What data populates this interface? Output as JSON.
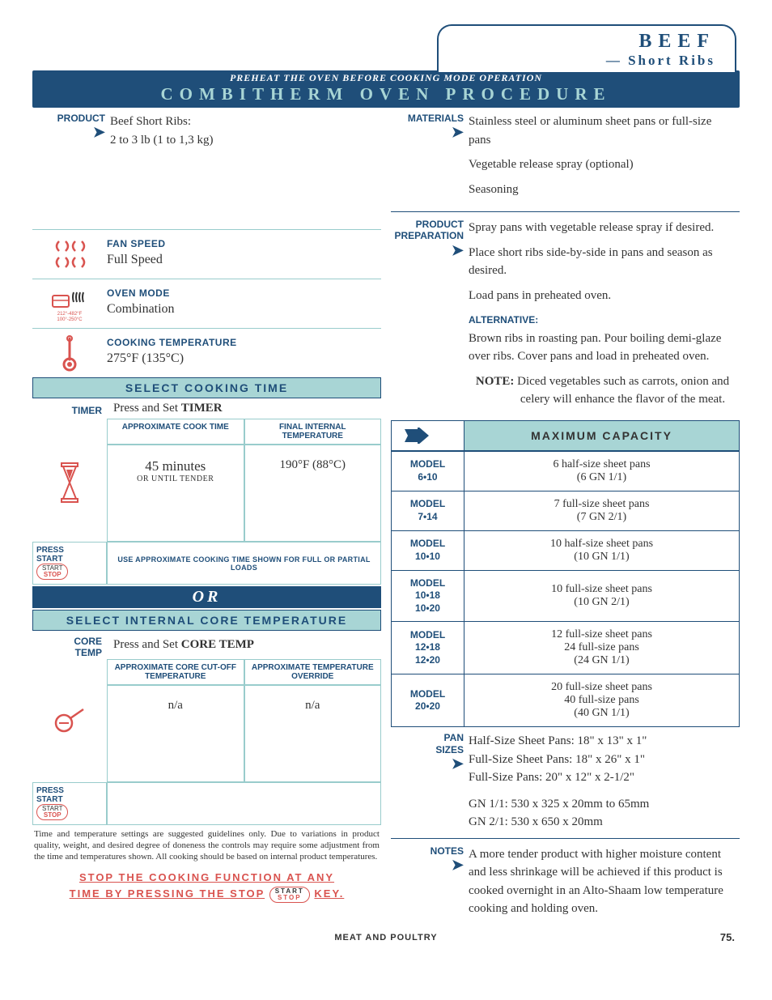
{
  "title": {
    "line1": "BEEF",
    "line2": "— Short Ribs"
  },
  "header": {
    "preheat": "PREHEAT THE OVEN BEFORE COOKING MODE OPERATION",
    "main": "COMBITHERM OVEN PROCEDURE"
  },
  "left": {
    "product": {
      "label": "PRODUCT",
      "line1": "Beef Short Ribs:",
      "line2": "2 to 3 lb (1 to 1,3 kg)"
    },
    "fan": {
      "label": "FAN SPEED",
      "value": "Full Speed"
    },
    "mode": {
      "label": "OVEN MODE",
      "value": "Combination"
    },
    "temp": {
      "label": "COOKING TEMPERATURE",
      "value": "275°F (135°C)"
    },
    "select_time": "SELECT COOKING TIME",
    "timer": {
      "label": "TIMER",
      "press": "Press and Set ",
      "bold": "TIMER",
      "h1": "APPROXIMATE COOK TIME",
      "h2": "FINAL INTERNAL TEMPERATURE",
      "v1": "45 minutes",
      "v1sub": "OR UNTIL TENDER",
      "v2": "190°F (88°C)"
    },
    "press_start": {
      "l1": "PRESS",
      "l2": "START"
    },
    "approx_hint": "USE APPROXIMATE COOKING TIME SHOWN FOR FULL OR PARTIAL LOADS",
    "or": "OR",
    "select_core": "SELECT INTERNAL CORE TEMPERATURE",
    "core": {
      "label": "CORE TEMP",
      "press": "Press and Set ",
      "bold": "CORE TEMP",
      "h1": "APPROXIMATE CORE CUT-OFF TEMPERATURE",
      "h2": "APPROXIMATE TEMPERATURE OVERRIDE",
      "v1": "n/a",
      "v2": "n/a"
    },
    "disclaimer": "Time and temperature settings are suggested guidelines only. Due to variations in product quality, weight, and desired degree of doneness the controls may require some adjustment from the time and temperatures shown. All cooking should be based on internal product temperatures.",
    "stop1": "STOP THE COOKING FUNCTION AT ANY",
    "stop2a": "TIME BY PRESSING THE STOP",
    "stop2b": "KEY."
  },
  "right": {
    "materials": {
      "label": "MATERIALS",
      "l1": "Stainless steel or aluminum sheet pans or full-size pans",
      "l2": "Vegetable release spray (optional)",
      "l3": "Seasoning"
    },
    "prep": {
      "label1": "PRODUCT",
      "label2": "PREPARATION",
      "p1": "Spray pans with vegetable release spray if desired.",
      "p2": "Place short ribs side-by-side in pans and season as desired.",
      "p3": "Load pans in preheated oven.",
      "alt_label": "ALTERNATIVE:",
      "alt": "Brown ribs in roasting pan. Pour boiling demi-glaze over ribs. Cover pans and load in preheated oven.",
      "note_label": "NOTE:",
      "note": "Diced vegetables such as carrots, onion and celery will enhance the flavor of the meat."
    },
    "capacity": {
      "header": "MAXIMUM CAPACITY",
      "rows": [
        {
          "model": "MODEL\n6•10",
          "desc": "6 half-size sheet pans\n(6 GN 1/1)"
        },
        {
          "model": "MODEL\n7•14",
          "desc": "7 full-size sheet pans\n(7 GN 2/1)"
        },
        {
          "model": "MODEL\n10•10",
          "desc": "10 half-size sheet pans\n(10 GN 1/1)"
        },
        {
          "model": "MODEL\n10•18\n10•20",
          "desc": "10 full-size sheet pans\n(10 GN 2/1)"
        },
        {
          "model": "MODEL\n12•18\n12•20",
          "desc": "12 full-size sheet pans\n24 full-size pans\n(24 GN 1/1)"
        },
        {
          "model": "MODEL\n20•20",
          "desc": "20 full-size sheet pans\n40 full-size pans\n(40 GN 1/1)"
        }
      ]
    },
    "pans": {
      "label": "PAN SIZES",
      "l1": "Half-Size Sheet Pans: 18\" x 13\" x 1\"",
      "l2": "Full-Size Sheet Pans: 18\" x 26\" x 1\"",
      "l3": "Full-Size Pans: 20\" x 12\" x 2-1/2\"",
      "l4": "GN 1/1: 530 x 325 x 20mm to 65mm",
      "l5": "GN 2/1: 530 x 650 x 20mm"
    },
    "notes": {
      "label": "NOTES",
      "text": "A more tender product with higher moisture content and less shrinkage will be achieved if this product is cooked overnight in an Alto-Shaam low temperature cooking and holding oven."
    }
  },
  "key": {
    "start": "START",
    "stop": "STOP"
  },
  "footer": "MEAT AND POULTRY",
  "page": "75."
}
